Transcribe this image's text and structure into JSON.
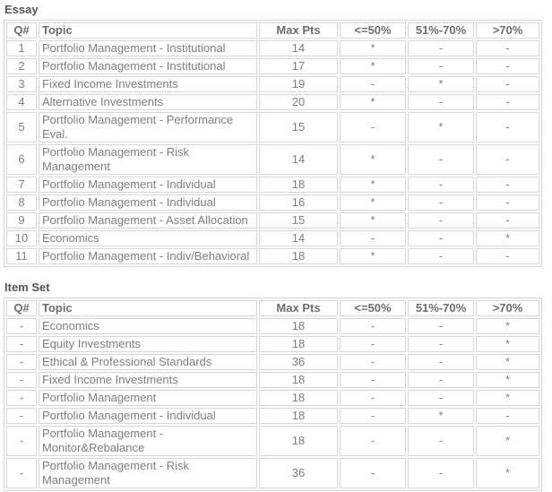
{
  "colors": {
    "background": "#ffffff",
    "border": "#d6d6d6",
    "title_text": "#565656",
    "header_text": "#6d6d6d",
    "body_text": "#7e7e7e"
  },
  "tables": [
    {
      "title": "Essay",
      "headers": [
        "Q#",
        "Topic",
        "Max Pts",
        "<=50%",
        "51%-70%",
        ">70%"
      ],
      "rows": [
        [
          "1",
          "Portfolio Management - Institutional",
          "14",
          "*",
          "-",
          "-"
        ],
        [
          "2",
          "Portfolio Management - Institutional",
          "17",
          "*",
          "-",
          "-"
        ],
        [
          "3",
          "Fixed Income Investments",
          "19",
          "-",
          "*",
          "-"
        ],
        [
          "4",
          "Alternative Investments",
          "20",
          "*",
          "-",
          "-"
        ],
        [
          "5",
          "Portfolio Management - Performance Eval.",
          "15",
          "-",
          "*",
          "-"
        ],
        [
          "6",
          "Portfolio Management - Risk Management",
          "14",
          "*",
          "-",
          "-"
        ],
        [
          "7",
          "Portfolio Management - Individual",
          "18",
          "*",
          "-",
          "-"
        ],
        [
          "8",
          "Portfolio Management - Individual",
          "16",
          "*",
          "-",
          "-"
        ],
        [
          "9",
          "Portfolio Management - Asset Allocation",
          "15",
          "*",
          "-",
          "-"
        ],
        [
          "10",
          "Economics",
          "14",
          "-",
          "-",
          "*"
        ],
        [
          "11",
          "Portfolio Management - Indiv/Behavioral",
          "18",
          "*",
          "-",
          "-"
        ]
      ]
    },
    {
      "title": "Item Set",
      "headers": [
        "Q#",
        "Topic",
        "Max Pts",
        "<=50%",
        "51%-70%",
        ">70%"
      ],
      "rows": [
        [
          "-",
          "Economics",
          "18",
          "-",
          "-",
          "*"
        ],
        [
          "-",
          "Equity Investments",
          "18",
          "-",
          "-",
          "*"
        ],
        [
          "-",
          "Ethical & Professional Standards",
          "36",
          "-",
          "-",
          "*"
        ],
        [
          "-",
          "Fixed Income Investments",
          "18",
          "-",
          "-",
          "*"
        ],
        [
          "-",
          "Portfolio Management",
          "18",
          "-",
          "-",
          "*"
        ],
        [
          "-",
          "Portfolio Management - Individual",
          "18",
          "-",
          "*",
          "-"
        ],
        [
          "-",
          "Portfolio Management - Monitor&Rebalance",
          "18",
          "-",
          "-",
          "*"
        ],
        [
          "-",
          "Portfolio Management - Risk Management",
          "36",
          "-",
          "-",
          "*"
        ]
      ]
    }
  ]
}
